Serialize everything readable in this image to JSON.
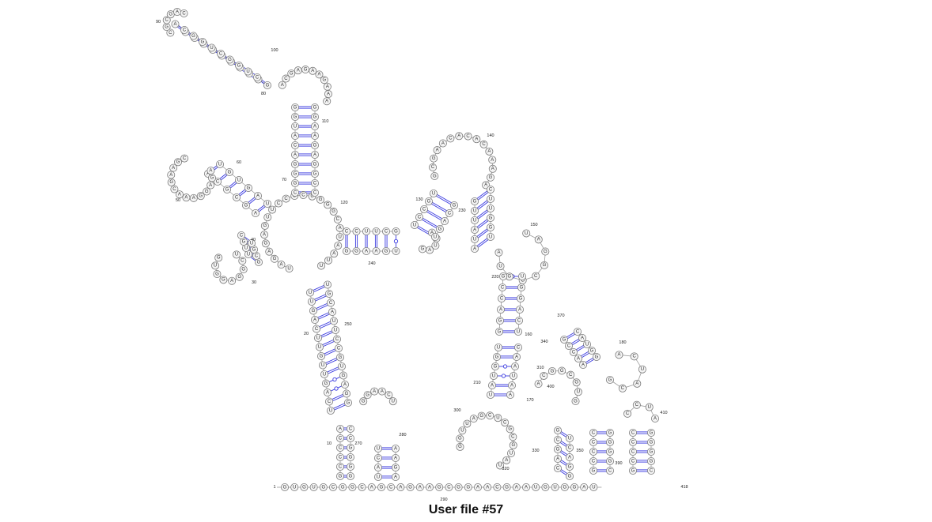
{
  "title": "User file #57",
  "colors": {
    "backbone": "#9a9a9a",
    "pair": "#3a3ae0",
    "node_fill": "#f4f4f4",
    "node_stroke": "#7a7a7a"
  },
  "numbers": [
    "1",
    "10",
    "20",
    "30",
    "40",
    "50",
    "60",
    "70",
    "80",
    "90",
    "100",
    "110",
    "120",
    "130",
    "140",
    "150",
    "160",
    "170",
    "180",
    "210",
    "220",
    "230",
    "240",
    "250",
    "270",
    "280",
    "290",
    "300",
    "310",
    "320",
    "330",
    "340",
    "350",
    "370",
    "390",
    "400",
    "410",
    "418"
  ],
  "helices": [
    {
      "id": "h_base_tail",
      "seq": "GUGUGC",
      "region": "baseline"
    },
    {
      "id": "h_top",
      "five": "CGGGACAUGGCUGG",
      "three": "AGCAAUCGGCUGG"
    },
    {
      "id": "h_left_top",
      "five": "GAGGUG",
      "three": "AGAAUU"
    },
    {
      "id": "h_left_mid",
      "five": "UGGCCG",
      "three": "GGGUUA"
    },
    {
      "id": "h_right_top",
      "five": "CAGCCU",
      "three": "GGAACU"
    },
    {
      "id": "h_right_long",
      "five": "UUGGUGAAU",
      "three": "CGAAUGCGG"
    },
    {
      "id": "h_trunk",
      "five": "UUCUAGUUGU",
      "three": "CCCUGCAGGU"
    },
    {
      "id": "h_bottom_left",
      "five": "CGCCC",
      "three": "GGGGC"
    },
    {
      "id": "h_bottom_mid",
      "five": "GCGGA",
      "three": "UCACG"
    },
    {
      "id": "h_bottom_right",
      "five": "CCCCG",
      "three": "GGGGC"
    }
  ]
}
